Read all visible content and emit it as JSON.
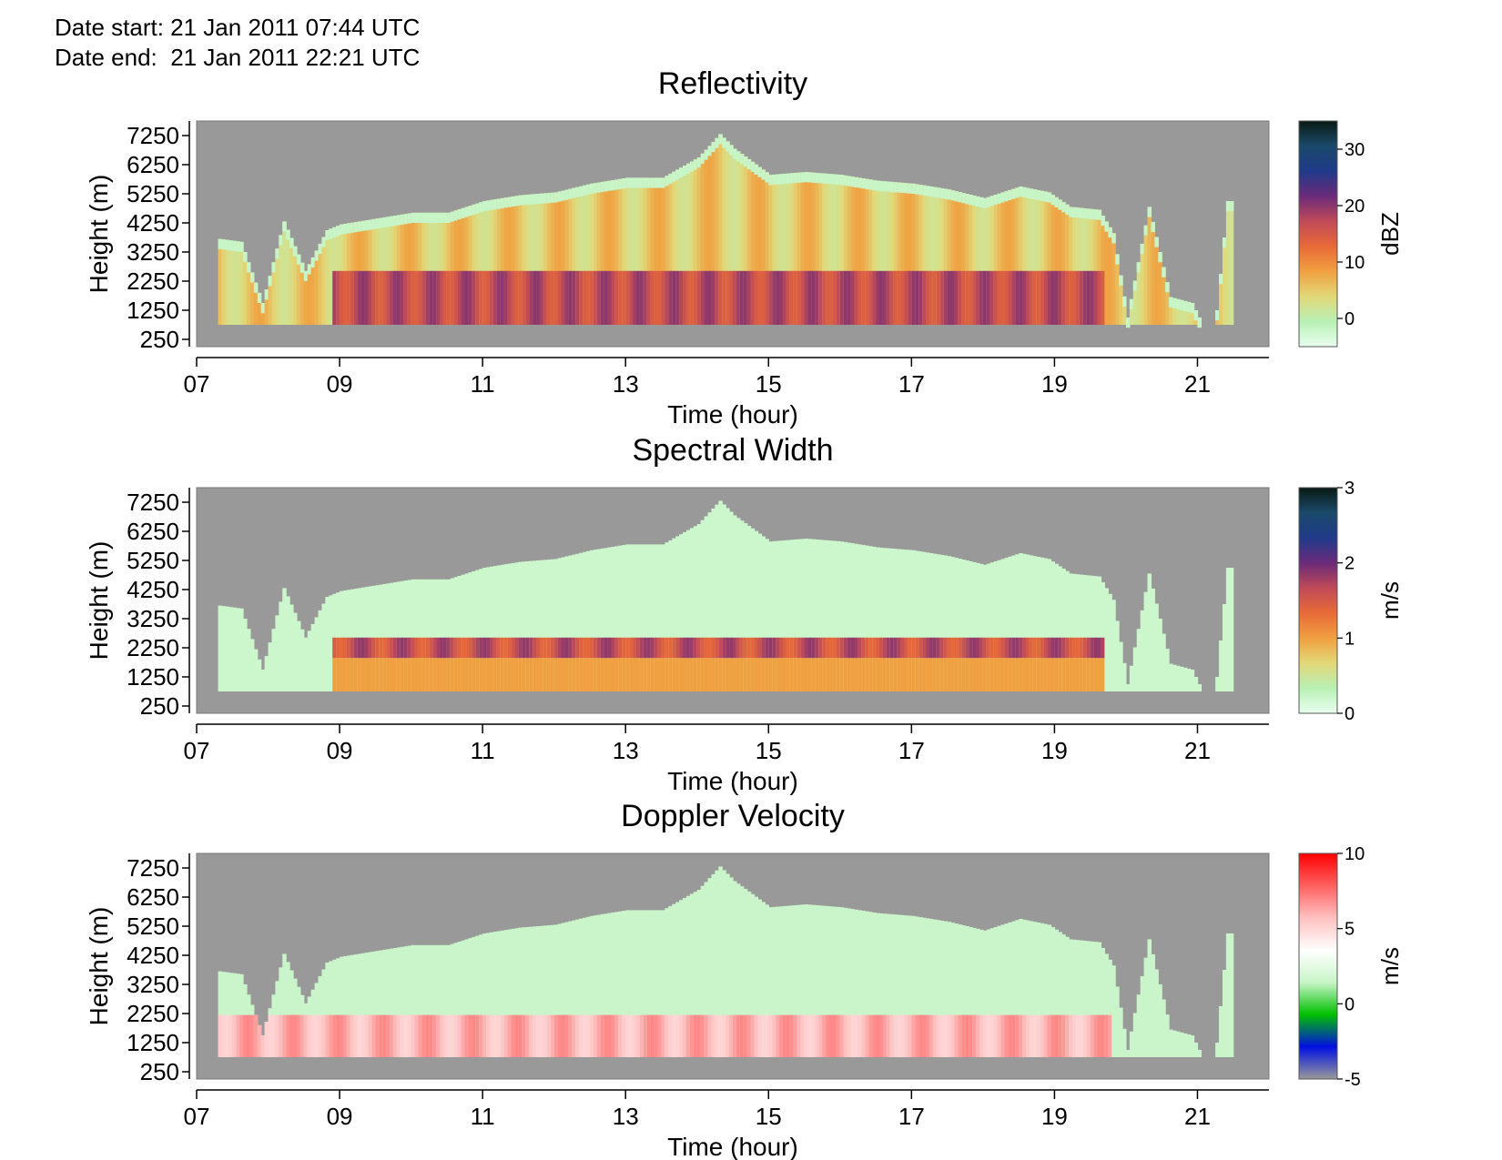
{
  "header": {
    "date_start": "Date start: 21 Jan 2011 07:44 UTC",
    "date_end": "Date end:  21 Jan 2011 22:21 UTC"
  },
  "colors": {
    "background_no_data": "#999999",
    "reflectivity_scale": [
      "#e9fff0",
      "#b8f0b4",
      "#e2d878",
      "#f0a040",
      "#e86a38",
      "#c04a58",
      "#6b2b7a",
      "#203a8a",
      "#1a4a6a",
      "#0a1a14"
    ],
    "spectral_width_scale": [
      "#e9fff0",
      "#b8f0b4",
      "#e2d878",
      "#f0a040",
      "#e86a38",
      "#c04a58",
      "#6b2b7a",
      "#203a8a",
      "#1a4a6a",
      "#0a1a14"
    ],
    "doppler_scale": [
      "#999999",
      "#0010e0",
      "#00c000",
      "#c8f5c8",
      "#ffffff",
      "#ffc0c0",
      "#ff6060",
      "#ff0000"
    ]
  },
  "chart_data": [
    {
      "id": "reflectivity",
      "type": "heatmap",
      "title": "Reflectivity",
      "xlabel": "Time (hour)",
      "ylabel": "Height (m)",
      "xlim": [
        7,
        22
      ],
      "ylim": [
        0,
        7750
      ],
      "xticks": [
        7,
        9,
        11,
        13,
        15,
        17,
        19,
        21
      ],
      "xtick_labels": [
        "07",
        "09",
        "11",
        "13",
        "15",
        "17",
        "19",
        "21"
      ],
      "yticks": [
        250,
        1250,
        2250,
        3250,
        4250,
        5250,
        6250,
        7250
      ],
      "ytick_labels": [
        "250",
        "1250",
        "2250",
        "3250",
        "4250",
        "5250",
        "6250",
        "7250"
      ],
      "colorbar": {
        "label": "dBZ",
        "min": -5,
        "max": 35,
        "ticks": [
          0,
          10,
          20,
          30
        ],
        "tick_labels": [
          "0",
          "10",
          "20",
          "30"
        ]
      },
      "field": {
        "profile_times": [
          7.3,
          7.6,
          7.9,
          8.2,
          8.5,
          8.8,
          9.0,
          9.5,
          10.0,
          10.5,
          11.0,
          11.5,
          12.0,
          12.5,
          13.0,
          13.5,
          14.0,
          14.3,
          14.5,
          15.0,
          15.5,
          16.0,
          16.5,
          17.0,
          17.5,
          18.0,
          18.5,
          18.9,
          19.2,
          19.6,
          19.8,
          20.0,
          20.3,
          20.6,
          20.9,
          21.2,
          21.4
        ],
        "echo_top_m": [
          3700,
          3600,
          1500,
          4300,
          2600,
          4000,
          4200,
          4400,
          4600,
          4600,
          5000,
          5200,
          5300,
          5600,
          5800,
          5800,
          6500,
          7300,
          6800,
          5900,
          6000,
          5900,
          5700,
          5600,
          5400,
          5100,
          5500,
          5300,
          4800,
          4700,
          3900,
          1000,
          4800,
          1700,
          1500,
          0,
          5000
        ],
        "echo_base_m": 750,
        "interior_dbz": 5,
        "melting_layer_m": [
          1000,
          2600
        ],
        "melting_layer_dbz": 17,
        "edge_dbz": -2
      }
    },
    {
      "id": "spectral_width",
      "type": "heatmap",
      "title": "Spectral Width",
      "xlabel": "Time (hour)",
      "ylabel": "Height (m)",
      "xlim": [
        7,
        22
      ],
      "ylim": [
        0,
        7750
      ],
      "xticks": [
        7,
        9,
        11,
        13,
        15,
        17,
        19,
        21
      ],
      "xtick_labels": [
        "07",
        "09",
        "11",
        "13",
        "15",
        "17",
        "19",
        "21"
      ],
      "yticks": [
        250,
        1250,
        2250,
        3250,
        4250,
        5250,
        6250,
        7250
      ],
      "ytick_labels": [
        "250",
        "1250",
        "2250",
        "3250",
        "4250",
        "5250",
        "6250",
        "7250"
      ],
      "colorbar": {
        "label": "m/s",
        "min": 0,
        "max": 3,
        "ticks": [
          0,
          1,
          2,
          3
        ],
        "tick_labels": [
          "0",
          "1",
          "2",
          "3"
        ]
      },
      "field": {
        "upper_value": 0.2,
        "lower_value": 1.0,
        "band_value": 1.6,
        "band_m": [
          1900,
          2600
        ]
      }
    },
    {
      "id": "doppler_velocity",
      "type": "heatmap",
      "title": "Doppler Velocity",
      "xlabel": "Time (hour)",
      "ylabel": "Height (m)",
      "xlim": [
        7,
        22
      ],
      "ylim": [
        0,
        7750
      ],
      "xticks": [
        7,
        9,
        11,
        13,
        15,
        17,
        19,
        21
      ],
      "xtick_labels": [
        "07",
        "09",
        "11",
        "13",
        "15",
        "17",
        "19",
        "21"
      ],
      "yticks": [
        250,
        1250,
        2250,
        3250,
        4250,
        5250,
        6250,
        7250
      ],
      "ytick_labels": [
        "250",
        "1250",
        "2250",
        "3250",
        "4250",
        "5250",
        "6250",
        "7250"
      ],
      "colorbar": {
        "label": "m/s",
        "min": -5,
        "max": 10,
        "ticks": [
          -5,
          0,
          5,
          10
        ],
        "tick_labels": [
          "-5",
          "0",
          "5",
          "10"
        ]
      },
      "field": {
        "upper_value": 1.5,
        "lower_value": 6,
        "transition_m": 2200
      }
    }
  ]
}
